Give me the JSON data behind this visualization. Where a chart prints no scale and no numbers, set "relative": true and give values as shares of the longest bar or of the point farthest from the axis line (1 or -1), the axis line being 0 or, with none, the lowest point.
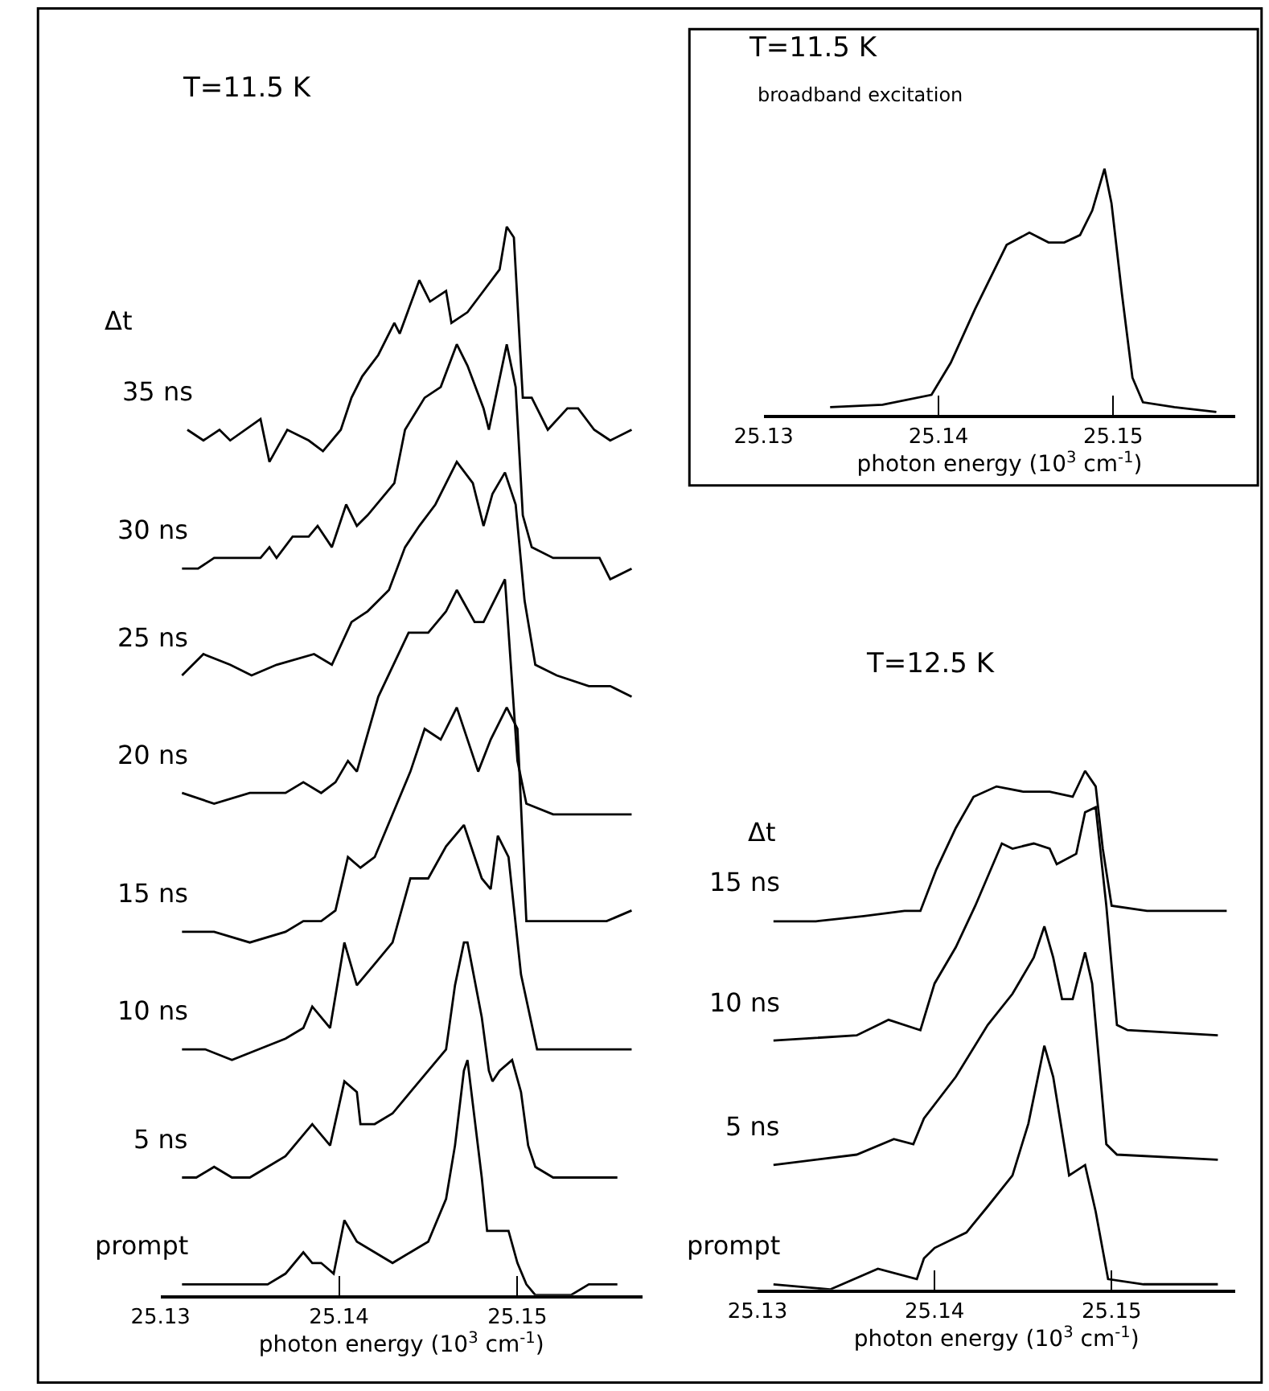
{
  "chart_data": [
    {
      "type": "line",
      "relative": true,
      "title": "T=11.5 K",
      "annotations": [
        "Δt"
      ],
      "xlabel": "photon energy (10$^{3}$ cm$^{-1}$)",
      "xlim": [
        25.13,
        25.157
      ],
      "xticks": [
        25.13,
        25.14,
        25.15
      ],
      "legend": false,
      "line_style": "solid",
      "marker": "none",
      "series": [
        {
          "name": "35 ns",
          "color": "#000000",
          "x": [
            25.1315,
            25.1324,
            25.1333,
            25.1339,
            25.1356,
            25.1361,
            25.1371,
            25.1383,
            25.1391,
            25.1401,
            25.1407,
            25.1413,
            25.1422,
            25.1431,
            25.1434,
            25.1445,
            25.1451,
            25.146,
            25.1463,
            25.1472,
            25.1481,
            25.149,
            25.1494,
            25.1498,
            25.1503,
            25.1508,
            25.1517,
            25.1528,
            25.1534,
            25.1543,
            25.1552,
            25.1564
          ],
          "values": [
            0.81,
            0.8,
            0.81,
            0.8,
            0.82,
            0.78,
            0.81,
            0.8,
            0.79,
            0.81,
            0.84,
            0.86,
            0.88,
            0.91,
            0.9,
            0.95,
            0.93,
            0.94,
            0.91,
            0.92,
            0.94,
            0.96,
            1.0,
            0.99,
            0.84,
            0.84,
            0.81,
            0.83,
            0.83,
            0.81,
            0.8,
            0.81
          ]
        },
        {
          "name": "30 ns",
          "color": "#000000",
          "x": [
            25.1312,
            25.1321,
            25.133,
            25.1345,
            25.1356,
            25.1361,
            25.1365,
            25.1374,
            25.1383,
            25.1388,
            25.1396,
            25.1404,
            25.141,
            25.1416,
            25.1431,
            25.1437,
            25.1448,
            25.1457,
            25.1466,
            25.1472,
            25.1481,
            25.1484,
            25.1494,
            25.1499,
            25.1503,
            25.1508,
            25.152,
            25.1528,
            25.1546,
            25.1552,
            25.1564
          ],
          "values": [
            0.68,
            0.68,
            0.69,
            0.69,
            0.69,
            0.7,
            0.69,
            0.71,
            0.71,
            0.72,
            0.7,
            0.74,
            0.72,
            0.73,
            0.76,
            0.81,
            0.84,
            0.85,
            0.89,
            0.87,
            0.83,
            0.81,
            0.89,
            0.85,
            0.73,
            0.7,
            0.69,
            0.69,
            0.69,
            0.67,
            0.68
          ]
        },
        {
          "name": "25 ns",
          "color": "#000000",
          "x": [
            25.1312,
            25.1324,
            25.1339,
            25.1351,
            25.1365,
            25.1386,
            25.1396,
            25.1407,
            25.1416,
            25.1428,
            25.1437,
            25.1445,
            25.1454,
            25.1466,
            25.1475,
            25.1481,
            25.1486,
            25.1493,
            25.1499,
            25.1504,
            25.151,
            25.1522,
            25.154,
            25.1552,
            25.1564
          ],
          "values": [
            0.58,
            0.6,
            0.59,
            0.58,
            0.59,
            0.6,
            0.59,
            0.63,
            0.64,
            0.66,
            0.7,
            0.72,
            0.74,
            0.78,
            0.76,
            0.72,
            0.75,
            0.77,
            0.74,
            0.65,
            0.59,
            0.58,
            0.57,
            0.57,
            0.56
          ]
        },
        {
          "name": "20 ns",
          "color": "#000000",
          "x": [
            25.1312,
            25.133,
            25.135,
            25.137,
            25.138,
            25.139,
            25.1398,
            25.1405,
            25.141,
            25.1422,
            25.1439,
            25.145,
            25.146,
            25.1466,
            25.1476,
            25.1481,
            25.1493,
            25.15,
            25.1505,
            25.152,
            25.154,
            25.1564
          ],
          "values": [
            0.47,
            0.46,
            0.47,
            0.47,
            0.48,
            0.47,
            0.48,
            0.5,
            0.49,
            0.56,
            0.62,
            0.62,
            0.64,
            0.66,
            0.63,
            0.63,
            0.67,
            0.5,
            0.46,
            0.45,
            0.45,
            0.45
          ]
        },
        {
          "name": "15 ns",
          "color": "#000000",
          "x": [
            25.1312,
            25.133,
            25.135,
            25.137,
            25.138,
            25.139,
            25.1398,
            25.1405,
            25.1412,
            25.142,
            25.143,
            25.144,
            25.1448,
            25.1457,
            25.1466,
            25.1478,
            25.1485,
            25.1494,
            25.15,
            25.1505,
            25.1515,
            25.153,
            25.155,
            25.1564
          ],
          "values": [
            0.34,
            0.34,
            0.33,
            0.34,
            0.35,
            0.35,
            0.36,
            0.41,
            0.4,
            0.41,
            0.45,
            0.49,
            0.53,
            0.52,
            0.55,
            0.49,
            0.52,
            0.55,
            0.53,
            0.35,
            0.35,
            0.35,
            0.35,
            0.36
          ]
        },
        {
          "name": "10 ns",
          "color": "#000000",
          "x": [
            25.1312,
            25.1325,
            25.134,
            25.1355,
            25.137,
            25.138,
            25.1385,
            25.1395,
            25.1403,
            25.141,
            25.142,
            25.143,
            25.144,
            25.145,
            25.146,
            25.147,
            25.148,
            25.1485,
            25.1489,
            25.1495,
            25.1502,
            25.1511,
            25.153,
            25.155,
            25.1564
          ],
          "values": [
            0.23,
            0.23,
            0.22,
            0.23,
            0.24,
            0.25,
            0.27,
            0.25,
            0.33,
            0.29,
            0.31,
            0.33,
            0.39,
            0.39,
            0.42,
            0.44,
            0.39,
            0.38,
            0.43,
            0.41,
            0.3,
            0.23,
            0.23,
            0.23,
            0.23
          ]
        },
        {
          "name": "5 ns",
          "color": "#000000",
          "x": [
            25.1312,
            25.132,
            25.133,
            25.134,
            25.135,
            25.136,
            25.137,
            25.138,
            25.1385,
            25.139,
            25.1395,
            25.1403,
            25.141,
            25.1412,
            25.142,
            25.143,
            25.144,
            25.145,
            25.146,
            25.1465,
            25.147,
            25.1472,
            25.148,
            25.1484,
            25.1486,
            25.149,
            25.1497,
            25.1502,
            25.1506,
            25.151,
            25.152,
            25.153,
            25.154,
            25.1556
          ],
          "values": [
            0.11,
            0.11,
            0.12,
            0.11,
            0.11,
            0.12,
            0.13,
            0.15,
            0.16,
            0.15,
            0.14,
            0.2,
            0.19,
            0.16,
            0.16,
            0.17,
            0.19,
            0.21,
            0.23,
            0.29,
            0.33,
            0.33,
            0.26,
            0.21,
            0.2,
            0.21,
            0.22,
            0.19,
            0.14,
            0.12,
            0.11,
            0.11,
            0.11,
            0.11
          ]
        },
        {
          "name": "prompt",
          "color": "#000000",
          "x": [
            25.1312,
            25.132,
            25.133,
            25.134,
            25.135,
            25.136,
            25.137,
            25.138,
            25.1385,
            25.139,
            25.1397,
            25.1403,
            25.141,
            25.142,
            25.143,
            25.144,
            25.145,
            25.146,
            25.1465,
            25.147,
            25.1472,
            25.148,
            25.1483,
            25.149,
            25.1495,
            25.15,
            25.1505,
            25.151,
            25.152,
            25.153,
            25.154,
            25.1556
          ],
          "values": [
            0.01,
            0.01,
            0.01,
            0.01,
            0.01,
            0.01,
            0.02,
            0.04,
            0.03,
            0.03,
            0.02,
            0.07,
            0.05,
            0.04,
            0.03,
            0.04,
            0.05,
            0.09,
            0.14,
            0.21,
            0.22,
            0.11,
            0.06,
            0.06,
            0.06,
            0.03,
            0.01,
            0.0,
            0.0,
            0.0,
            0.01,
            0.01
          ]
        }
      ]
    },
    {
      "type": "line",
      "relative": true,
      "title": "T=11.5 K",
      "subtitle": "broadband excitation",
      "xlabel": "photon energy (10$^{3}$ cm$^{-1}$)",
      "xlim": [
        25.13,
        25.157
      ],
      "xticks": [
        25.13,
        25.14,
        25.15
      ],
      "legend": false,
      "line_style": "solid",
      "marker": "none",
      "color": "#000000",
      "x": [
        25.1338,
        25.1368,
        25.1396,
        25.1407,
        25.1421,
        25.1439,
        25.1452,
        25.1463,
        25.1472,
        25.1481,
        25.1488,
        25.1495,
        25.1499,
        25.1505,
        25.1511,
        25.1517,
        25.1535,
        25.1559
      ],
      "values": [
        0.03,
        0.04,
        0.08,
        0.21,
        0.43,
        0.69,
        0.74,
        0.7,
        0.7,
        0.73,
        0.83,
        1.0,
        0.86,
        0.49,
        0.15,
        0.05,
        0.03,
        0.01
      ]
    },
    {
      "type": "line",
      "relative": true,
      "title": "T=12.5 K",
      "annotations": [
        "Δt"
      ],
      "xlabel": "photon energy (10$^{3}$ cm$^{-1}$)",
      "xlim": [
        25.13,
        25.157
      ],
      "xticks": [
        25.13,
        25.14,
        25.15
      ],
      "legend": false,
      "line_style": "solid",
      "marker": "none",
      "series": [
        {
          "name": "15 ns",
          "color": "#000000",
          "x": [
            25.1309,
            25.1333,
            25.136,
            25.1383,
            25.1392,
            25.1401,
            25.1412,
            25.1422,
            25.1435,
            25.145,
            25.1465,
            25.1478,
            25.1485,
            25.1491,
            25.1495,
            25.15,
            25.152,
            25.154,
            25.1565
          ],
          "values": [
            0.71,
            0.71,
            0.72,
            0.73,
            0.73,
            0.81,
            0.89,
            0.95,
            0.97,
            0.96,
            0.96,
            0.95,
            1.0,
            0.97,
            0.85,
            0.74,
            0.73,
            0.73,
            0.73
          ]
        },
        {
          "name": "10 ns",
          "color": "#000000",
          "x": [
            25.1309,
            25.1356,
            25.1374,
            25.1392,
            25.14,
            25.1412,
            25.1423,
            25.1438,
            25.1444,
            25.1456,
            25.1465,
            25.1469,
            25.148,
            25.1485,
            25.1491,
            25.1497,
            25.1503,
            25.1509,
            25.156
          ],
          "values": [
            0.48,
            0.49,
            0.52,
            0.5,
            0.59,
            0.66,
            0.74,
            0.86,
            0.85,
            0.86,
            0.85,
            0.82,
            0.84,
            0.92,
            0.93,
            0.74,
            0.51,
            0.5,
            0.49
          ]
        },
        {
          "name": "5 ns",
          "color": "#000000",
          "x": [
            25.1309,
            25.1356,
            25.1377,
            25.1388,
            25.1394,
            25.1412,
            25.143,
            25.1444,
            25.1456,
            25.1462,
            25.1467,
            25.1472,
            25.1478,
            25.1485,
            25.1489,
            25.1497,
            25.1503,
            25.156
          ],
          "values": [
            0.24,
            0.26,
            0.29,
            0.28,
            0.33,
            0.41,
            0.51,
            0.57,
            0.64,
            0.7,
            0.64,
            0.56,
            0.56,
            0.65,
            0.59,
            0.28,
            0.26,
            0.25
          ]
        },
        {
          "name": "prompt",
          "color": "#000000",
          "x": [
            25.1309,
            25.1341,
            25.1368,
            25.139,
            25.1394,
            25.14,
            25.1418,
            25.143,
            25.1444,
            25.1453,
            25.1462,
            25.1467,
            25.1476,
            25.1485,
            25.1491,
            25.1498,
            25.1518,
            25.156
          ],
          "values": [
            0.01,
            0.0,
            0.04,
            0.02,
            0.06,
            0.08,
            0.11,
            0.16,
            0.22,
            0.32,
            0.47,
            0.41,
            0.22,
            0.24,
            0.15,
            0.02,
            0.01,
            0.01
          ]
        }
      ]
    }
  ]
}
